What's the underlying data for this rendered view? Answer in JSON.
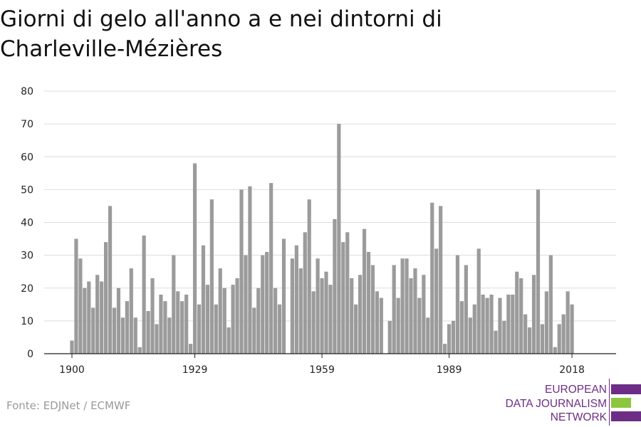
{
  "title_lines": [
    "Giorni di gelo all'anno a e nei dintorni di",
    "Charleville-Mézières"
  ],
  "source": "Fonte: EDJNet / ECMWF",
  "logo": {
    "lines": [
      "EUROPEAN",
      "DATA JOURNALISM",
      "NETWORK"
    ],
    "color_purple": "#6d2d86",
    "color_green": "#8cc63f"
  },
  "colors": {
    "bar": "#9b9b9b",
    "grid": "#dddddd",
    "axis": "#222222"
  },
  "chart_data": {
    "type": "bar",
    "title": "Giorni di gelo all'anno a e nei dintorni di Charleville-Mézières",
    "xlabel": "",
    "ylabel": "",
    "ylim": [
      0,
      80
    ],
    "yticks": [
      0,
      10,
      20,
      30,
      40,
      50,
      60,
      70,
      80
    ],
    "xticks": [
      1900,
      1929,
      1959,
      1989,
      2018
    ],
    "grid": true,
    "x": [
      1900,
      1901,
      1902,
      1903,
      1904,
      1905,
      1906,
      1907,
      1908,
      1909,
      1910,
      1911,
      1912,
      1913,
      1914,
      1915,
      1916,
      1917,
      1918,
      1919,
      1920,
      1921,
      1922,
      1923,
      1924,
      1925,
      1926,
      1927,
      1928,
      1929,
      1930,
      1931,
      1932,
      1933,
      1934,
      1935,
      1936,
      1937,
      1938,
      1939,
      1940,
      1941,
      1942,
      1943,
      1944,
      1945,
      1946,
      1947,
      1948,
      1949,
      1950,
      1951,
      1952,
      1953,
      1954,
      1955,
      1956,
      1957,
      1958,
      1959,
      1960,
      1961,
      1962,
      1963,
      1964,
      1965,
      1966,
      1967,
      1968,
      1969,
      1970,
      1971,
      1972,
      1973,
      1974,
      1975,
      1976,
      1977,
      1978,
      1979,
      1980,
      1981,
      1982,
      1983,
      1984,
      1985,
      1986,
      1987,
      1988,
      1989,
      1990,
      1991,
      1992,
      1993,
      1994,
      1995,
      1996,
      1997,
      1998,
      1999,
      2000,
      2001,
      2002,
      2003,
      2004,
      2005,
      2006,
      2007,
      2008,
      2009,
      2010,
      2011,
      2012,
      2013,
      2014,
      2015,
      2016,
      2017,
      2018
    ],
    "values": [
      4,
      35,
      29,
      20,
      22,
      14,
      24,
      22,
      34,
      45,
      14,
      20,
      11,
      16,
      26,
      11,
      2,
      36,
      13,
      23,
      9,
      18,
      16,
      11,
      30,
      19,
      16,
      18,
      3,
      58,
      15,
      33,
      21,
      47,
      15,
      26,
      20,
      8,
      21,
      23,
      50,
      30,
      51,
      14,
      20,
      30,
      31,
      52,
      20,
      15,
      35,
      0,
      29,
      33,
      26,
      37,
      47,
      19,
      29,
      23,
      25,
      21,
      41,
      70,
      34,
      37,
      23,
      15,
      24,
      38,
      31,
      27,
      19,
      17,
      0,
      10,
      27,
      17,
      29,
      29,
      23,
      26,
      17,
      24,
      11,
      46,
      32,
      45,
      3,
      9,
      10,
      30,
      16,
      27,
      11,
      15,
      32,
      18,
      17,
      18,
      7,
      17,
      10,
      18,
      18,
      25,
      23,
      12,
      8,
      24,
      50,
      9,
      19,
      30,
      2,
      9,
      12,
      19,
      15
    ]
  }
}
